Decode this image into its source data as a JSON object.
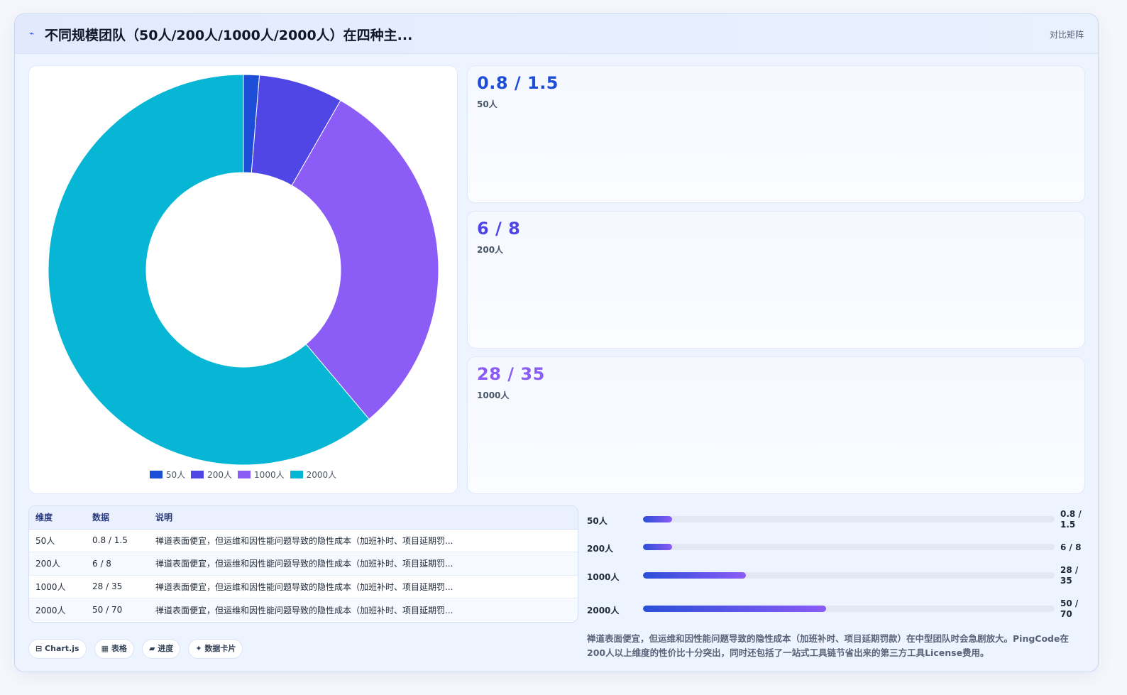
{
  "header": {
    "logo_glyph": "⌁",
    "title": "不同规模团队（50人/200人/1000人/2000人）在四种主...",
    "tag": "对比矩阵"
  },
  "chart_data": {
    "type": "pie",
    "categories": [
      "50人",
      "200人",
      "1000人",
      "2000人"
    ],
    "values": [
      1.5,
      8,
      35,
      70
    ],
    "colors": [
      "#1d4ed8",
      "#4f46e5",
      "#8b5cf6",
      "#06b6d4"
    ],
    "title": "",
    "legend_position": "bottom"
  },
  "stats": [
    {
      "value": "0.8 / 1.5",
      "label": "50人",
      "color": "#1d4ed8"
    },
    {
      "value": "6 / 8",
      "label": "200人",
      "color": "#4f46e5"
    },
    {
      "value": "28 / 35",
      "label": "1000人",
      "color": "#8b5cf6"
    }
  ],
  "table": {
    "headers": [
      "维度",
      "数据",
      "说明"
    ],
    "rows": [
      [
        "50人",
        "0.8 / 1.5",
        "禅道表面便宜，但运维和因性能问题导致的隐性成本（加班补时、项目延期罚..."
      ],
      [
        "200人",
        "6 / 8",
        "禅道表面便宜，但运维和因性能问题导致的隐性成本（加班补时、项目延期罚..."
      ],
      [
        "1000人",
        "28 / 35",
        "禅道表面便宜，但运维和因性能问题导致的隐性成本（加班补时、项目延期罚..."
      ],
      [
        "2000人",
        "50 / 70",
        "禅道表面便宜，但运维和因性能问题导致的隐性成本（加班补时、项目延期罚..."
      ]
    ]
  },
  "chips": [
    "⊟ Chart.js",
    "▦ 表格",
    "▰ 进度",
    "✦ 数据卡片"
  ],
  "bars": [
    {
      "label": "50人",
      "value": "0.8 / 1.5",
      "progress": 0.07
    },
    {
      "label": "200人",
      "value": "6 / 8",
      "progress": 0.07
    },
    {
      "label": "1000人",
      "value": "28 / 35",
      "progress": 0.25
    },
    {
      "label": "2000人",
      "value": "50 / 70",
      "progress": 0.445
    }
  ],
  "note": "禅道表面便宜，但运维和因性能问题导致的隐性成本（加班补时、项目延期罚款）在中型团队时会急剧放大。PingCode在200人以上维度的性价比十分突出，同时还包括了一站式工具链节省出来的第三方工具License费用。"
}
